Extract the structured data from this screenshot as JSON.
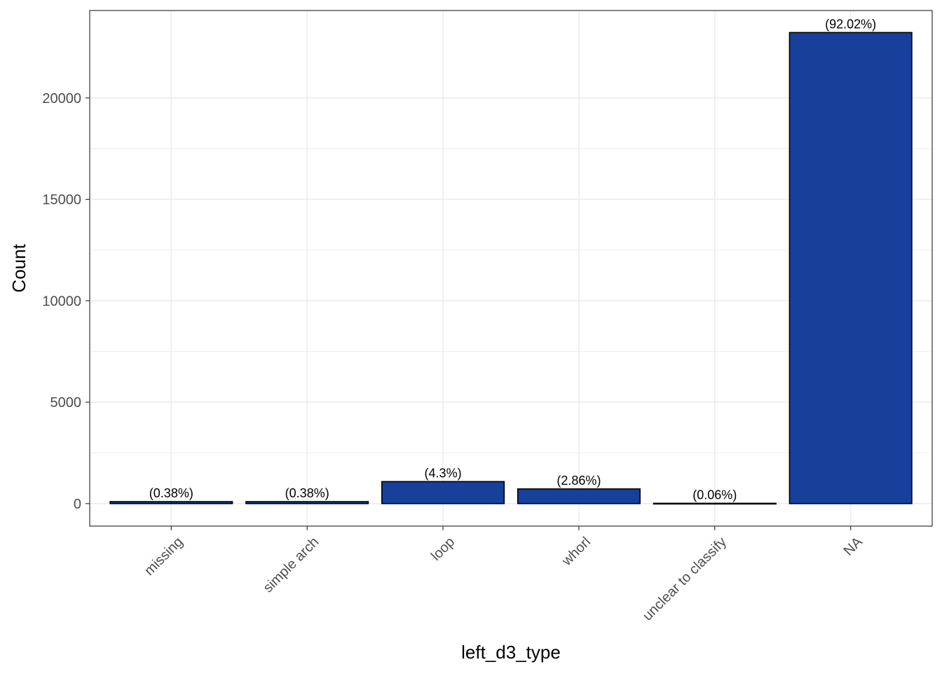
{
  "chart_data": {
    "type": "bar",
    "categories": [
      "missing",
      "simple arch",
      "loop",
      "whorl",
      "unclear to classify",
      "NA"
    ],
    "values": [
      96,
      96,
      1085,
      722,
      15,
      23225
    ],
    "data_labels": [
      "(0.38%)",
      "(0.38%)",
      "(4.3%)",
      "(2.86%)",
      "(0.06%)",
      "(92.02%)"
    ],
    "xlabel": "left_d3_type",
    "ylabel": "Count",
    "ylim": [
      -1110,
      24310
    ],
    "yticks": [
      0,
      5000,
      10000,
      15000,
      20000
    ],
    "ytick_labels": [
      "0",
      "5000",
      "10000",
      "15000",
      "20000"
    ],
    "grid": true,
    "bar_color": "#17409A",
    "bar_edge_color": "#000000",
    "grid_color": "#EBEBEB",
    "tick_label_color": "#4D4D4D"
  }
}
